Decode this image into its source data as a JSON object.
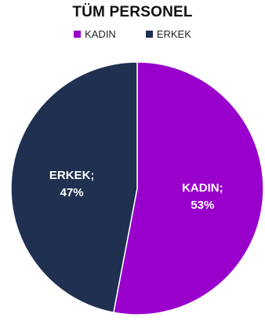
{
  "chart_data": {
    "type": "pie",
    "title": "TÜM PERSONEL",
    "legend_position": "top",
    "categories": [
      "KADIN",
      "ERKEK"
    ],
    "values": [
      53,
      47
    ],
    "colors": [
      "#9900CC",
      "#1F3050"
    ],
    "data_labels": [
      {
        "category": "KADIN;",
        "value": "53%"
      },
      {
        "category": "ERKEK;",
        "value": "47%"
      }
    ]
  }
}
